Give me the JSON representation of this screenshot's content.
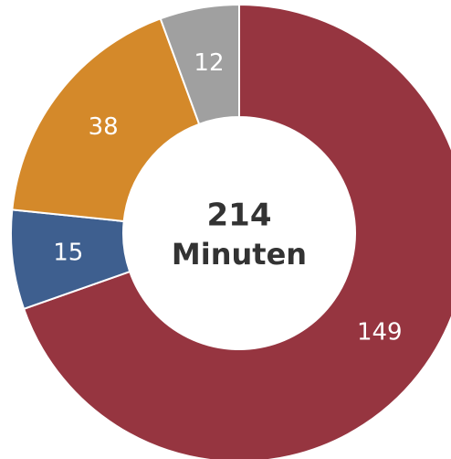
{
  "chart_data": {
    "type": "donut",
    "values": [
      149,
      15,
      38,
      12
    ],
    "colors": [
      "#963540",
      "#3e5f8f",
      "#d4892a",
      "#a0a0a0"
    ],
    "total": 214,
    "center_label": "Minuten"
  }
}
